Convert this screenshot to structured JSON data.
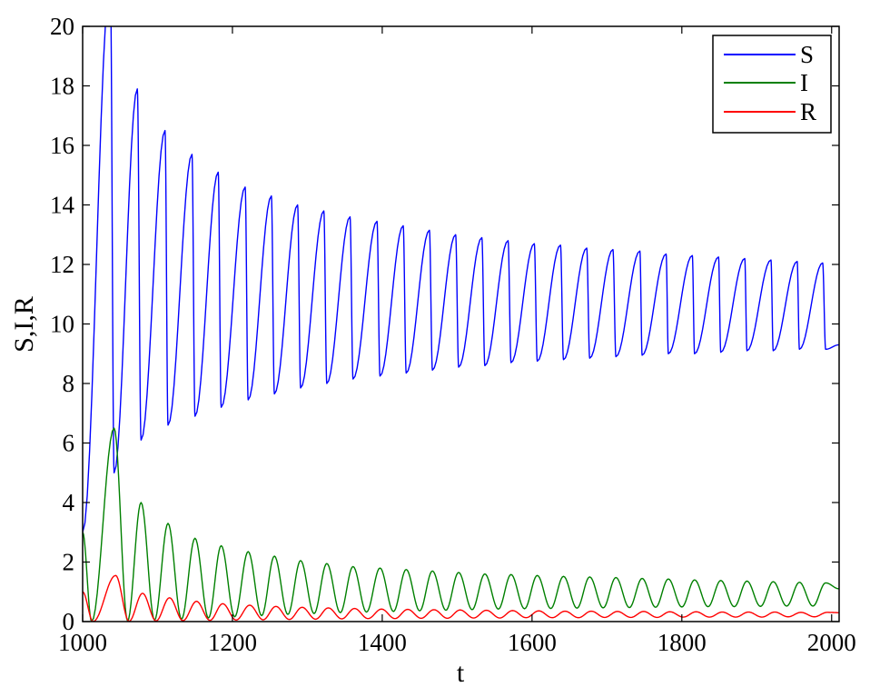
{
  "chart_data": {
    "type": "line",
    "title": "",
    "xlabel": "t",
    "ylabel": "S,I,R",
    "xlim": [
      1000,
      2010
    ],
    "ylim": [
      0,
      20
    ],
    "x_ticks": [
      1000,
      1200,
      1400,
      1600,
      1800,
      2000
    ],
    "y_ticks": [
      0,
      2,
      4,
      6,
      8,
      10,
      12,
      14,
      16,
      18,
      20
    ],
    "grid": false,
    "legend_position": "top-right",
    "period": 35.2,
    "series": [
      {
        "name": "S",
        "color": "#0000ff",
        "start_value": 3.0,
        "end_value": 9.3,
        "peaks": [
          [
            1037,
            21.5
          ],
          [
            1073,
            17.9
          ],
          [
            1110,
            16.5
          ],
          [
            1146,
            15.7
          ],
          [
            1181,
            15.1
          ],
          [
            1217,
            14.6
          ],
          [
            1252,
            14.3
          ],
          [
            1287,
            14.0
          ],
          [
            1322,
            13.8
          ],
          [
            1357,
            13.6
          ],
          [
            1393,
            13.45
          ],
          [
            1428,
            13.3
          ],
          [
            1463,
            13.15
          ],
          [
            1498,
            13.0
          ],
          [
            1533,
            12.9
          ],
          [
            1568,
            12.8
          ],
          [
            1603,
            12.7
          ],
          [
            1638,
            12.65
          ],
          [
            1673,
            12.55
          ],
          [
            1708,
            12.5
          ],
          [
            1744,
            12.45
          ],
          [
            1779,
            12.35
          ],
          [
            1814,
            12.3
          ],
          [
            1849,
            12.25
          ],
          [
            1884,
            12.2
          ],
          [
            1919,
            12.15
          ],
          [
            1954,
            12.1
          ],
          [
            1988,
            12.05
          ]
        ],
        "troughs": [
          [
            1042,
            5.0
          ],
          [
            1078,
            6.1
          ],
          [
            1114,
            6.6
          ],
          [
            1150,
            6.9
          ],
          [
            1185,
            7.2
          ],
          [
            1221,
            7.45
          ],
          [
            1256,
            7.65
          ],
          [
            1291,
            7.85
          ],
          [
            1326,
            8.0
          ],
          [
            1361,
            8.15
          ],
          [
            1397,
            8.25
          ],
          [
            1432,
            8.35
          ],
          [
            1467,
            8.45
          ],
          [
            1502,
            8.55
          ],
          [
            1537,
            8.6
          ],
          [
            1572,
            8.7
          ],
          [
            1607,
            8.75
          ],
          [
            1642,
            8.8
          ],
          [
            1677,
            8.85
          ],
          [
            1712,
            8.9
          ],
          [
            1747,
            8.95
          ],
          [
            1782,
            9.0
          ],
          [
            1817,
            9.0
          ],
          [
            1852,
            9.05
          ],
          [
            1887,
            9.1
          ],
          [
            1922,
            9.1
          ],
          [
            1957,
            9.15
          ],
          [
            1992,
            9.15
          ]
        ]
      },
      {
        "name": "I",
        "color": "#008000",
        "start_value": 3.0,
        "end_value": 1.1,
        "peaks": [
          [
            1042,
            6.5
          ],
          [
            1078,
            4.0
          ],
          [
            1114,
            3.3
          ],
          [
            1150,
            2.8
          ],
          [
            1185,
            2.55
          ],
          [
            1221,
            2.35
          ],
          [
            1256,
            2.2
          ],
          [
            1291,
            2.05
          ],
          [
            1326,
            1.95
          ],
          [
            1361,
            1.85
          ],
          [
            1397,
            1.8
          ],
          [
            1432,
            1.75
          ],
          [
            1467,
            1.7
          ],
          [
            1502,
            1.65
          ],
          [
            1537,
            1.6
          ],
          [
            1572,
            1.58
          ],
          [
            1607,
            1.55
          ],
          [
            1642,
            1.52
          ],
          [
            1677,
            1.5
          ],
          [
            1712,
            1.48
          ],
          [
            1747,
            1.45
          ],
          [
            1782,
            1.43
          ],
          [
            1817,
            1.4
          ],
          [
            1852,
            1.38
          ],
          [
            1887,
            1.36
          ],
          [
            1922,
            1.34
          ],
          [
            1957,
            1.32
          ],
          [
            1992,
            1.3
          ]
        ],
        "troughs": [
          [
            1012,
            0.0
          ],
          [
            1060,
            0.02
          ],
          [
            1096,
            0.05
          ],
          [
            1132,
            0.08
          ],
          [
            1168,
            0.12
          ],
          [
            1203,
            0.16
          ],
          [
            1239,
            0.2
          ],
          [
            1274,
            0.24
          ],
          [
            1309,
            0.27
          ],
          [
            1344,
            0.3
          ],
          [
            1379,
            0.32
          ],
          [
            1415,
            0.34
          ],
          [
            1450,
            0.36
          ],
          [
            1485,
            0.38
          ],
          [
            1520,
            0.4
          ],
          [
            1555,
            0.42
          ],
          [
            1590,
            0.43
          ],
          [
            1625,
            0.44
          ],
          [
            1660,
            0.45
          ],
          [
            1695,
            0.46
          ],
          [
            1730,
            0.47
          ],
          [
            1765,
            0.48
          ],
          [
            1800,
            0.49
          ],
          [
            1835,
            0.5
          ],
          [
            1870,
            0.5
          ],
          [
            1905,
            0.51
          ],
          [
            1940,
            0.52
          ],
          [
            1975,
            0.52
          ]
        ]
      },
      {
        "name": "R",
        "color": "#ff0000",
        "start_value": 1.0,
        "end_value": 0.3,
        "peaks": [
          [
            1044,
            1.55
          ],
          [
            1080,
            0.95
          ],
          [
            1116,
            0.8
          ],
          [
            1152,
            0.68
          ],
          [
            1187,
            0.6
          ],
          [
            1223,
            0.55
          ],
          [
            1258,
            0.51
          ],
          [
            1293,
            0.48
          ],
          [
            1328,
            0.46
          ],
          [
            1363,
            0.44
          ],
          [
            1399,
            0.42
          ],
          [
            1434,
            0.41
          ],
          [
            1469,
            0.4
          ],
          [
            1504,
            0.39
          ],
          [
            1539,
            0.38
          ],
          [
            1574,
            0.37
          ],
          [
            1609,
            0.36
          ],
          [
            1644,
            0.35
          ],
          [
            1679,
            0.35
          ],
          [
            1714,
            0.34
          ],
          [
            1749,
            0.34
          ],
          [
            1784,
            0.33
          ],
          [
            1819,
            0.33
          ],
          [
            1854,
            0.32
          ],
          [
            1889,
            0.32
          ],
          [
            1924,
            0.32
          ],
          [
            1959,
            0.31
          ],
          [
            1994,
            0.31
          ]
        ],
        "troughs": [
          [
            1014,
            0.0
          ],
          [
            1062,
            0.01
          ],
          [
            1098,
            0.02
          ],
          [
            1134,
            0.03
          ],
          [
            1170,
            0.04
          ],
          [
            1205,
            0.05
          ],
          [
            1241,
            0.06
          ],
          [
            1276,
            0.07
          ],
          [
            1311,
            0.08
          ],
          [
            1346,
            0.09
          ],
          [
            1381,
            0.1
          ],
          [
            1417,
            0.1
          ],
          [
            1452,
            0.11
          ],
          [
            1487,
            0.11
          ],
          [
            1522,
            0.12
          ],
          [
            1557,
            0.12
          ],
          [
            1592,
            0.13
          ],
          [
            1627,
            0.13
          ],
          [
            1662,
            0.13
          ],
          [
            1697,
            0.14
          ],
          [
            1732,
            0.14
          ],
          [
            1767,
            0.14
          ],
          [
            1802,
            0.15
          ],
          [
            1837,
            0.15
          ],
          [
            1872,
            0.15
          ],
          [
            1907,
            0.15
          ],
          [
            1942,
            0.16
          ],
          [
            1977,
            0.16
          ]
        ]
      }
    ]
  }
}
